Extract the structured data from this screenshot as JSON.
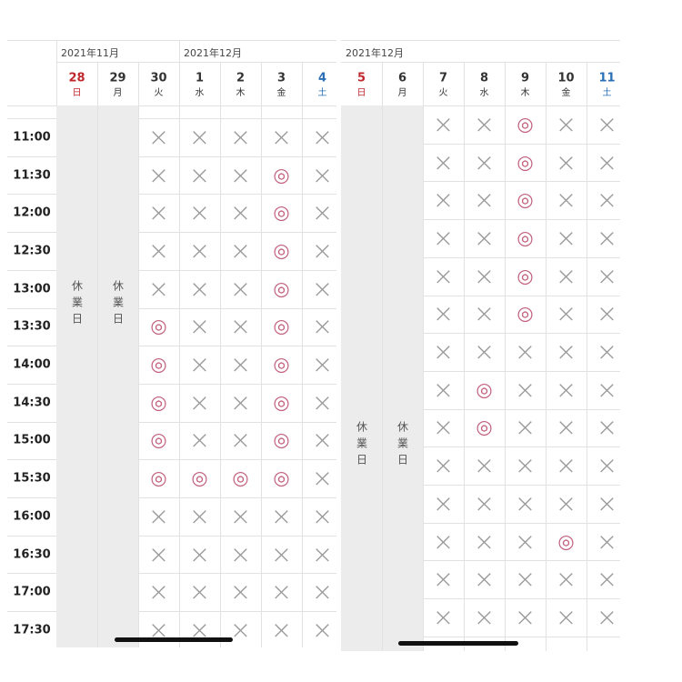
{
  "panels": [
    {
      "days": [
        {
          "month": "2021年11月",
          "day": 28,
          "weekday": "日",
          "color": "#c0272d",
          "closed": "休業日"
        },
        {
          "day": 29,
          "weekday": "月",
          "closed": "休業日"
        },
        {
          "day": 30,
          "weekday": "火"
        },
        {
          "month": "2021年12月",
          "day": 1,
          "weekday": "水"
        },
        {
          "day": 2,
          "weekday": "木"
        },
        {
          "day": 3,
          "weekday": "金"
        },
        {
          "day": 4,
          "weekday": "土",
          "color": "#2a6fb5"
        }
      ],
      "times": [
        "11:00",
        "11:30",
        "12:00",
        "12:30",
        "13:00",
        "13:30",
        "14:00",
        "14:30",
        "15:00",
        "15:30",
        "16:00",
        "16:30",
        "17:00",
        "17:30"
      ],
      "rows": [
        [
          "×",
          "×",
          "×",
          "×",
          "×"
        ],
        [
          "×",
          "×",
          "×",
          "◎",
          "×"
        ],
        [
          "×",
          "×",
          "×",
          "◎",
          "×"
        ],
        [
          "×",
          "×",
          "×",
          "◎",
          "×"
        ],
        [
          "×",
          "×",
          "×",
          "◎",
          "×"
        ],
        [
          "◎",
          "×",
          "×",
          "◎",
          "×"
        ],
        [
          "◎",
          "×",
          "×",
          "◎",
          "×"
        ],
        [
          "◎",
          "×",
          "×",
          "◎",
          "×"
        ],
        [
          "◎",
          "×",
          "×",
          "◎",
          "×"
        ],
        [
          "◎",
          "◎",
          "◎",
          "◎",
          "×"
        ],
        [
          "×",
          "×",
          "×",
          "×",
          "×"
        ],
        [
          "×",
          "×",
          "×",
          "×",
          "×"
        ],
        [
          "×",
          "×",
          "×",
          "×",
          "×"
        ],
        [
          "×",
          "×",
          "×",
          "×",
          "×"
        ]
      ]
    },
    {
      "days": [
        {
          "month": "2021年12月",
          "day": 5,
          "weekday": "日",
          "color": "#c0272d",
          "closed": "休業日"
        },
        {
          "day": 6,
          "weekday": "月",
          "closed": "休業日"
        },
        {
          "day": 7,
          "weekday": "火"
        },
        {
          "day": 8,
          "weekday": "水"
        },
        {
          "day": 9,
          "weekday": "木"
        },
        {
          "day": 10,
          "weekday": "金"
        },
        {
          "day": 11,
          "weekday": "土",
          "color": "#2a6fb5"
        }
      ],
      "rows": [
        [
          "×",
          "×",
          "◎",
          "×",
          "×"
        ],
        [
          "×",
          "×",
          "◎",
          "×",
          "×"
        ],
        [
          "×",
          "×",
          "◎",
          "×",
          "×"
        ],
        [
          "×",
          "×",
          "◎",
          "×",
          "×"
        ],
        [
          "×",
          "×",
          "◎",
          "×",
          "×"
        ],
        [
          "×",
          "×",
          "◎",
          "×",
          "×"
        ],
        [
          "×",
          "×",
          "×",
          "×",
          "×"
        ],
        [
          "×",
          "◎",
          "×",
          "×",
          "×"
        ],
        [
          "×",
          "◎",
          "×",
          "×",
          "×"
        ],
        [
          "×",
          "×",
          "×",
          "×",
          "×"
        ],
        [
          "×",
          "×",
          "×",
          "×",
          "×"
        ],
        [
          "×",
          "×",
          "×",
          "◎",
          "×"
        ],
        [
          "×",
          "×",
          "×",
          "×",
          "×"
        ],
        [
          "×",
          "×",
          "×",
          "×",
          "×"
        ]
      ]
    }
  ]
}
